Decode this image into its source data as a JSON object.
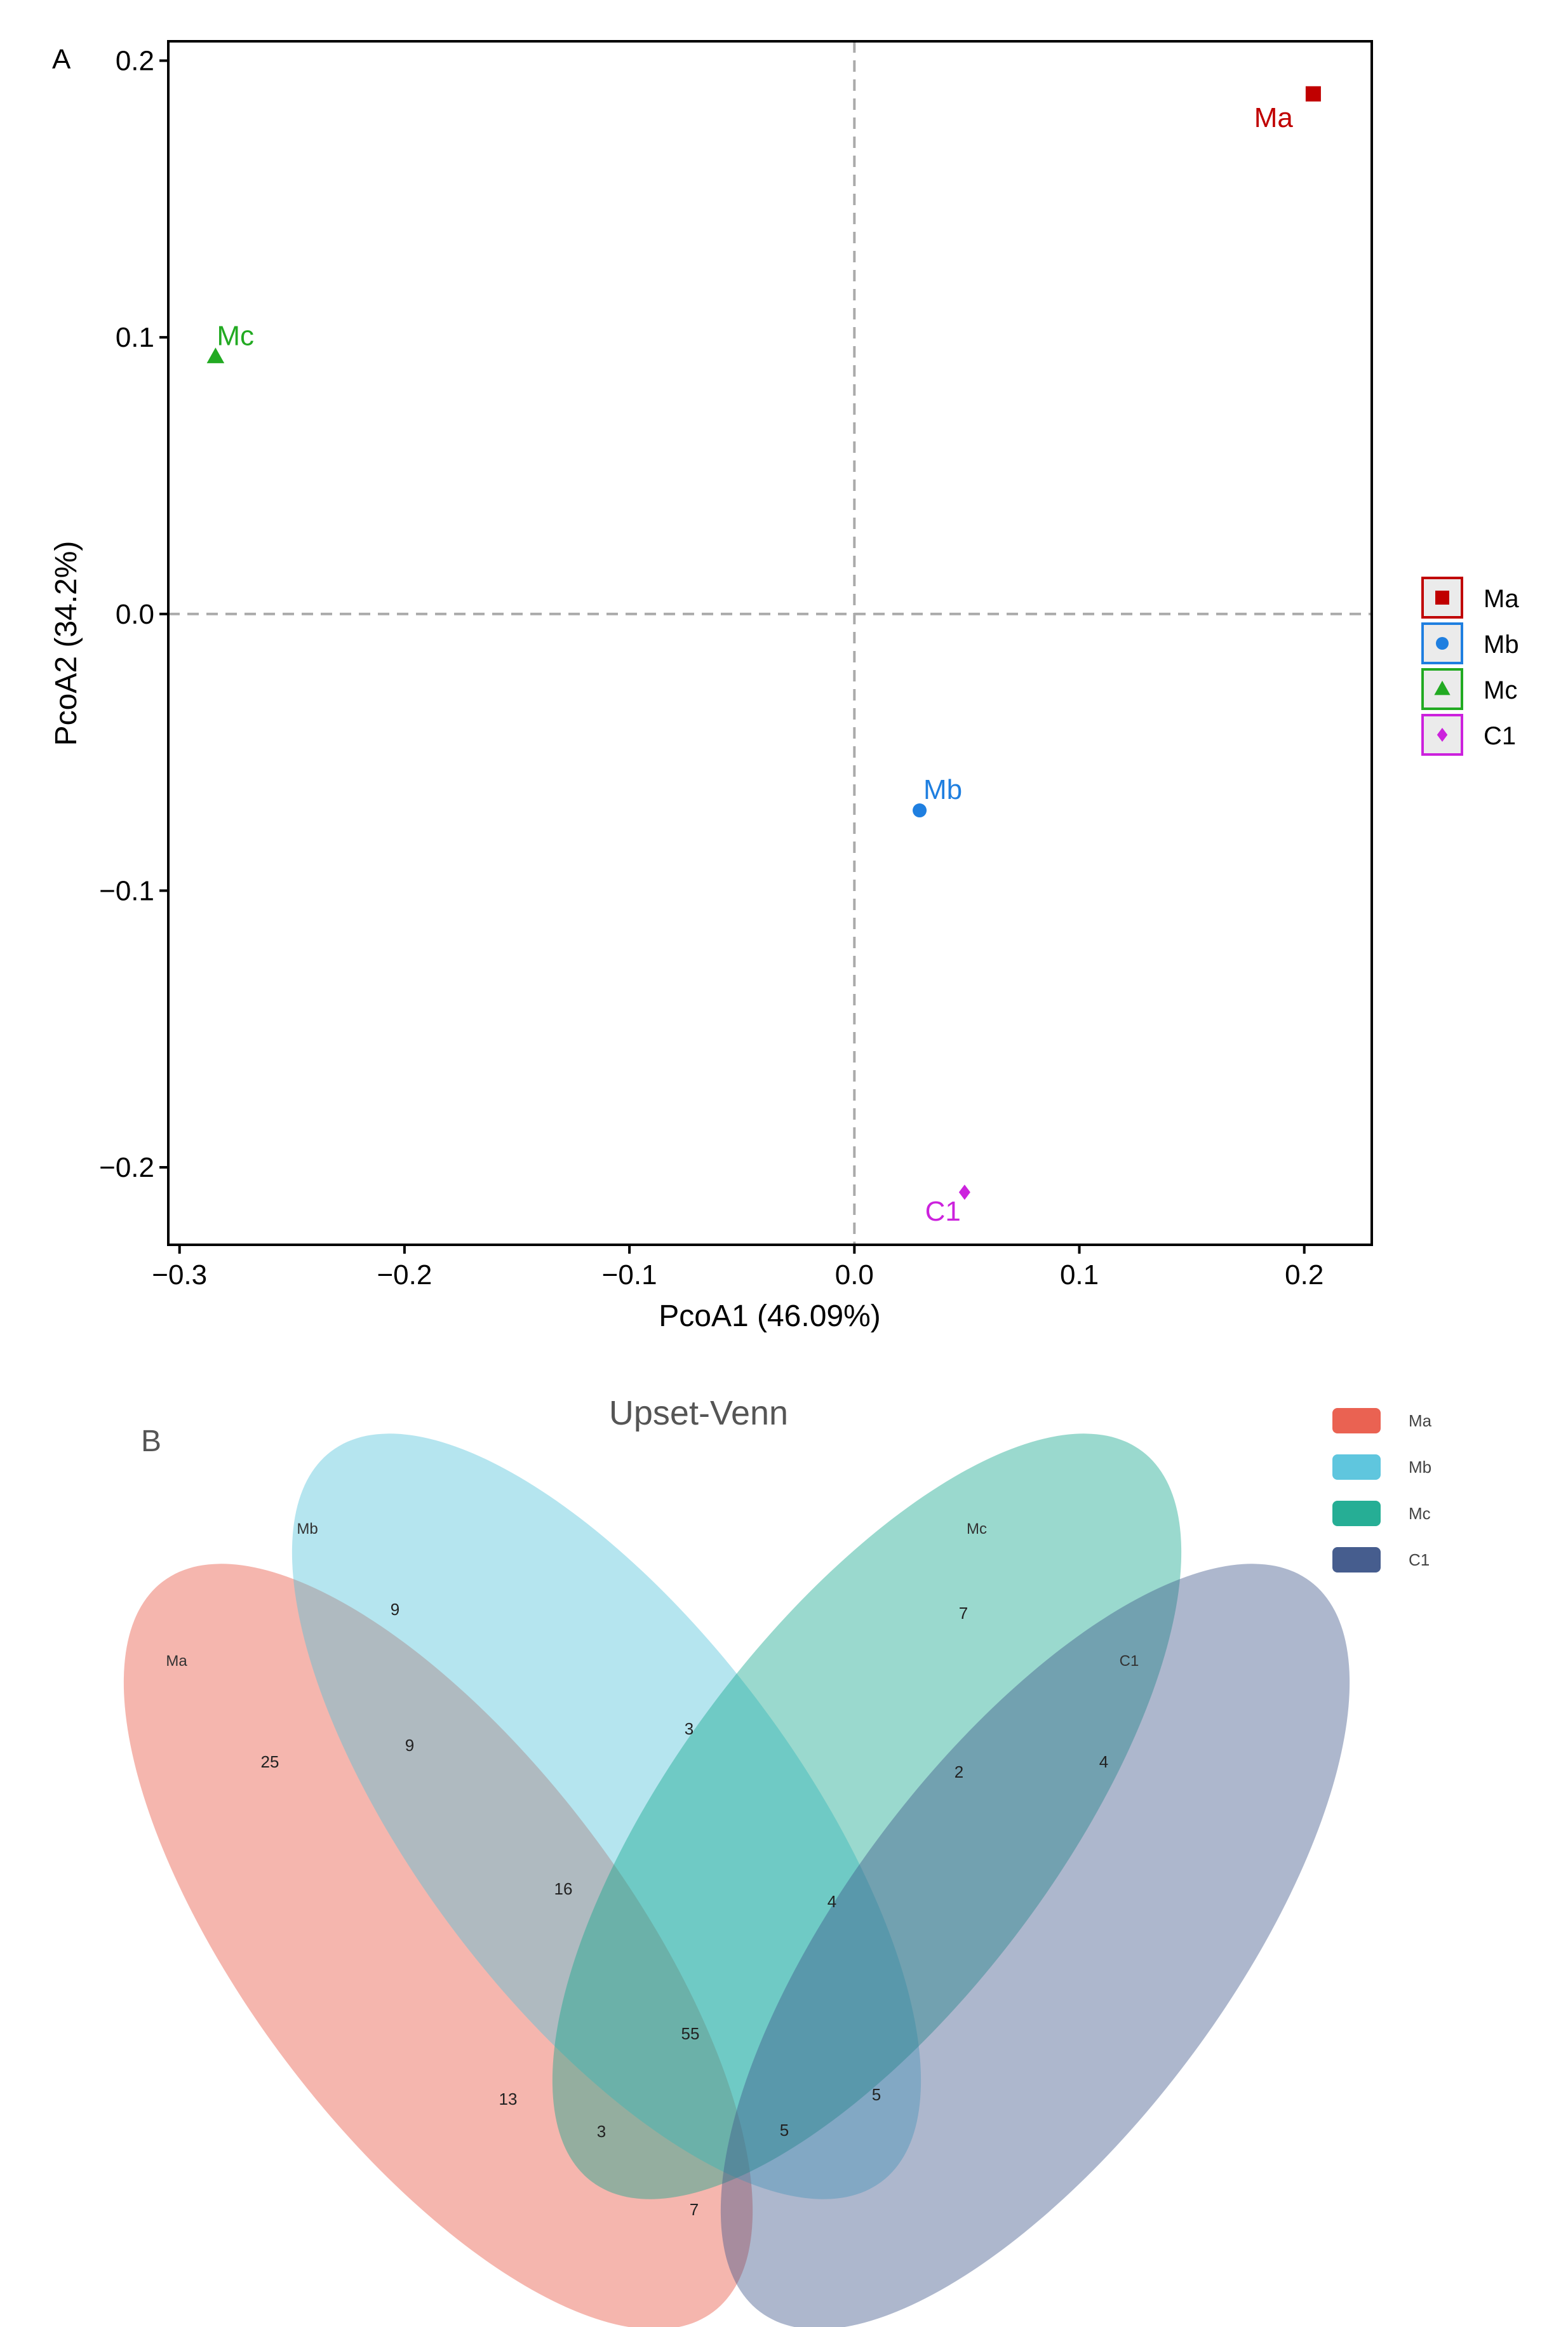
{
  "colors": {
    "Ma": "#c00000",
    "Mb": "#1f7fe0",
    "Mc": "#22aa22",
    "C1": "#cc22dd",
    "venn_Ma": "#e8513f",
    "venn_Mb": "#4ec0da",
    "venn_Mc": "#0ea58a",
    "venn_C1": "#3c5488"
  },
  "chart_data": [
    {
      "type": "scatter",
      "panel_label": "A",
      "xlabel": "PcoA1 (46.09%)",
      "ylabel": "PcoA2 (34.2%)",
      "xlim": [
        -0.305,
        0.23
      ],
      "ylim": [
        -0.228,
        0.207
      ],
      "x_ticks": [
        -0.3,
        -0.2,
        -0.1,
        0.0,
        0.1,
        0.2
      ],
      "x_tick_labels": [
        "−0.3",
        "−0.2",
        "−0.1",
        "0.0",
        "0.1",
        "0.2"
      ],
      "y_ticks": [
        0.2,
        0.1,
        0.0,
        -0.1,
        -0.2
      ],
      "y_tick_labels": [
        "0.2",
        "0.1",
        "0.0",
        "−0.1",
        "−0.2"
      ],
      "reference_lines": {
        "x": 0,
        "y": 0
      },
      "grid": false,
      "legend_position": "right",
      "series": [
        {
          "name": "Ma",
          "marker": "square",
          "x": 0.204,
          "y": 0.188,
          "label": "Ma"
        },
        {
          "name": "Mb",
          "marker": "circle",
          "x": 0.029,
          "y": -0.071,
          "label": "Mb"
        },
        {
          "name": "Mc",
          "marker": "triangle",
          "x": -0.284,
          "y": 0.093,
          "label": "Mc"
        },
        {
          "name": "C1",
          "marker": "diamond",
          "x": 0.049,
          "y": -0.209,
          "label": "C1"
        }
      ]
    },
    {
      "type": "venn",
      "panel_label": "B",
      "title": "Upset-Venn",
      "sets": [
        "Ma",
        "Mb",
        "Mc",
        "C1"
      ],
      "legend_position": "top-right",
      "regions": [
        {
          "sets": [
            "Ma"
          ],
          "value": 25
        },
        {
          "sets": [
            "Mb"
          ],
          "value": 9
        },
        {
          "sets": [
            "Mc"
          ],
          "value": 7
        },
        {
          "sets": [
            "C1"
          ],
          "value": 4
        },
        {
          "sets": [
            "Ma",
            "Mb"
          ],
          "value": 9
        },
        {
          "sets": [
            "Mb",
            "Mc"
          ],
          "value": 3
        },
        {
          "sets": [
            "Mc",
            "C1"
          ],
          "value": 2
        },
        {
          "sets": [
            "Ma",
            "Mb",
            "Mc"
          ],
          "value": 16
        },
        {
          "sets": [
            "Mb",
            "Mc",
            "C1"
          ],
          "value": 4
        },
        {
          "sets": [
            "Ma",
            "Mb",
            "Mc",
            "C1"
          ],
          "value": 55
        },
        {
          "sets": [
            "Ma",
            "Mc"
          ],
          "value": 13
        },
        {
          "sets": [
            "Ma",
            "Mc",
            "C1"
          ],
          "value": 3
        },
        {
          "sets": [
            "Mb",
            "C1"
          ],
          "value": 5
        },
        {
          "sets": [
            "Ma",
            "Mb",
            "C1"
          ],
          "value": 5
        },
        {
          "sets": [
            "Ma",
            "C1"
          ],
          "value": 7
        }
      ]
    }
  ]
}
